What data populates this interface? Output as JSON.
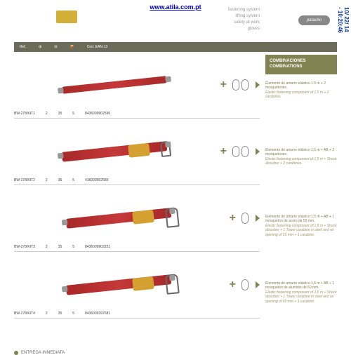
{
  "header": {
    "url": "www.atila.com.pt",
    "brand": "patacho",
    "nav": [
      "fastening system",
      "lifting system",
      "safety at work",
      "gloves"
    ],
    "sideCode": "10/ 22/ 14 - 10:20:46"
  },
  "tableHeader": {
    "ref": "Ref.",
    "ean": "Cod. EAN-13"
  },
  "comboHeader": {
    "es": "COMBINACIONES",
    "en": "COMBINATIONS"
  },
  "rows": [
    {
      "ref": "BW-278/KIT1",
      "c1": "2",
      "c2": "35",
      "c3": "5",
      "ean": "8436009902596",
      "carabiners": 2,
      "hasShock": false,
      "hasHook": false,
      "bigHook": false,
      "desc_es": "Elemento de amarre elástico 1.5 m + 2 mosquetones.",
      "desc_en": "Elastic fastening component of 1.5 m + 2 carabines."
    },
    {
      "ref": "BW-278/KIT2",
      "c1": "2",
      "c2": "35",
      "c3": "5",
      "ean": "436009902589",
      "carabiners": 2,
      "hasShock": true,
      "hasHook": true,
      "bigHook": false,
      "desc_es": "Elemento de amarre elástico 1,5 m + AB + 2 mosquetones.",
      "desc_en": "Elastic fastening component of 1,5 m + Shock absorber + 2 carabines."
    },
    {
      "ref": "BW-278/KIT3",
      "c1": "2",
      "c2": "35",
      "c3": "5",
      "ean": "8436009902251",
      "carabiners": 1,
      "hasShock": true,
      "hasHook": true,
      "bigHook": true,
      "desc_es": "Elemento de amarre elástico 1,5 m + AB + 1 mosquetón de acero de 55 mm.",
      "desc_en": "Elastic fastening component of 1,5 m + Shock absorber + 1 Tower carabine in steel and an opening of 55 mm + 1 carabine."
    },
    {
      "ref": "BW-278/KIT4",
      "c1": "2",
      "c2": "35",
      "c3": "5",
      "ean": "8436009397681",
      "carabiners": 1,
      "hasShock": true,
      "hasHook": true,
      "bigHook": true,
      "desc_es": "Elemento de amarre elástico 1,5 m + AB + 1 mosquetón de aluminio de 60 mm.",
      "desc_en": "Elastic fastening component of 1,5 m + Shock absorber + 1 Tower carabine in steel and an opening of 60 mm + 1 carabine."
    }
  ],
  "footer": "ENTREGA INMEDIATA"
}
